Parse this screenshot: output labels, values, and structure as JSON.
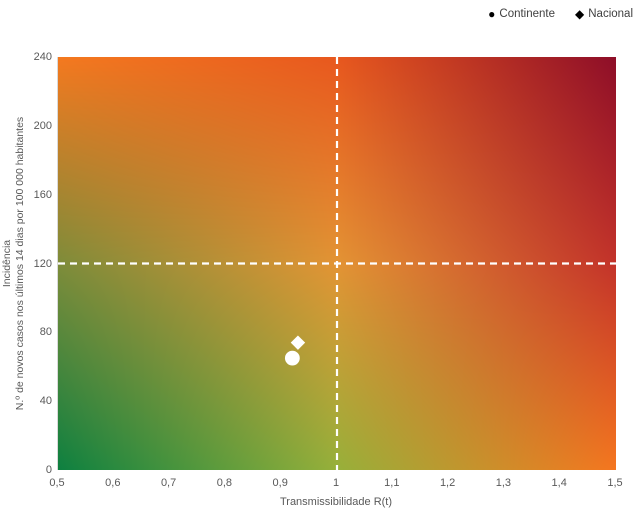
{
  "chart_data": {
    "type": "heatmap",
    "title": "",
    "xlabel": "Transmissibilidade R(t)",
    "ylabel_line1": "Incidência",
    "ylabel_line2": "N.º de novos casos nos últimos 14 dias por 100 000 habitantes",
    "xlim": [
      0.5,
      1.5
    ],
    "ylim": [
      0,
      240
    ],
    "x_tick_labels": [
      "0,5",
      "0,6",
      "0,7",
      "0,8",
      "0,9",
      "1",
      "1,1",
      "1,2",
      "1,3",
      "1,4",
      "1,5"
    ],
    "y_tick_labels": [
      "0",
      "40",
      "80",
      "120",
      "160",
      "200",
      "240"
    ],
    "grid": false,
    "threshold_lines": {
      "vertical_x": 1,
      "horizontal_y": 120,
      "color": "#ffffff",
      "style": "dashed"
    },
    "gradient_grid": {
      "description": "3x3 control colors of risk surface, rows top(incidence 240) to bottom(0), cols left(R 0.5) to right(R 1.5)",
      "rows": [
        [
          "#F4791F",
          "#E8581E",
          "#8E0E28"
        ],
        [
          "#7E8C3A",
          "#E39434",
          "#C3332A"
        ],
        [
          "#0E8040",
          "#97B03A",
          "#F5761F"
        ]
      ]
    },
    "series": [
      {
        "name": "Continente",
        "marker": "circle",
        "marker_color": "#ffffff",
        "points": [
          {
            "x": 0.92,
            "y": 65
          }
        ]
      },
      {
        "name": "Nacional",
        "marker": "diamond",
        "marker_color": "#ffffff",
        "points": [
          {
            "x": 0.93,
            "y": 74
          }
        ]
      }
    ],
    "legend": {
      "position": "top-right",
      "entries": [
        {
          "label": "Continente",
          "marker": "circle",
          "marker_glyph": "●"
        },
        {
          "label": "Nacional",
          "marker": "diamond",
          "marker_glyph": "◆"
        }
      ]
    },
    "colors": {
      "tick_text": "#595959",
      "legend_text": "#404040",
      "legend_marker": "#000000",
      "background": "#ffffff",
      "axis_line": "#d9d9d9"
    }
  }
}
